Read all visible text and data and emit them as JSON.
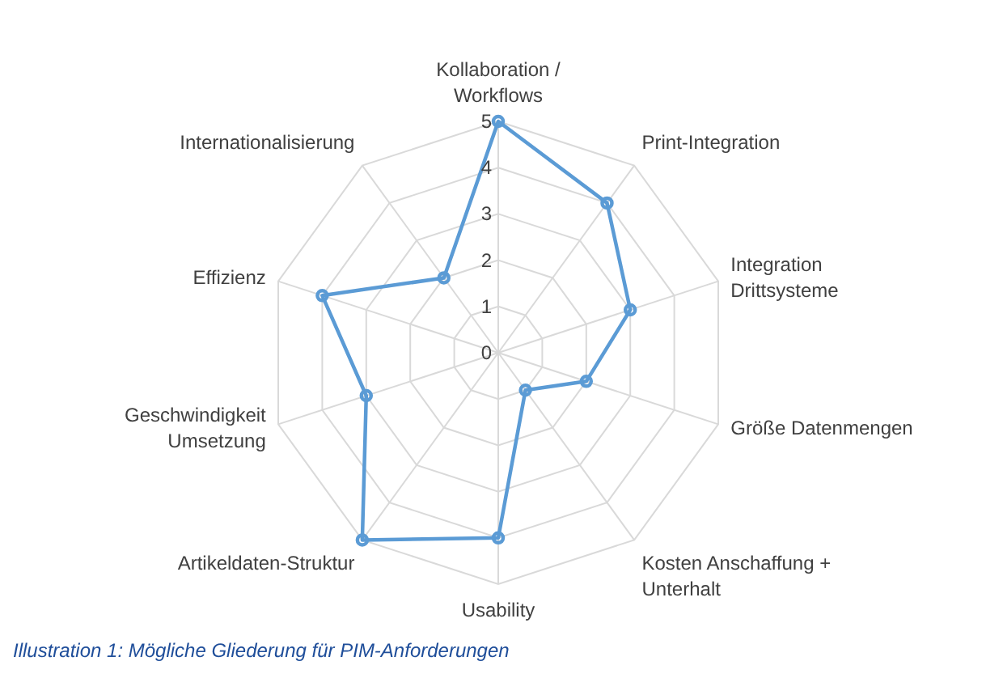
{
  "chart_data": {
    "type": "radar",
    "categories": [
      "Kollaboration / Workflows",
      "Print-Integration",
      "Integration Drittsysteme",
      "Größe Datenmengen",
      "Kosten Anschaffung + Unterhalt",
      "Usability",
      "Artikeldaten-Struktur",
      "Geschwindigkeit Umsetzung",
      "Effizienz",
      "Internationalisierung"
    ],
    "series": [
      {
        "color": "#5b9bd5",
        "values": [
          5,
          4,
          3,
          2,
          1,
          4,
          5,
          3,
          4,
          2
        ]
      }
    ],
    "ylim": [
      0,
      5
    ],
    "yticks": [
      0,
      1,
      2,
      3,
      4,
      5
    ],
    "grid": true,
    "marker": "circle",
    "legend": false,
    "annotations": [
      "Illustration 1: Mögliche Gliederung für PIM-Anforderungen"
    ]
  }
}
